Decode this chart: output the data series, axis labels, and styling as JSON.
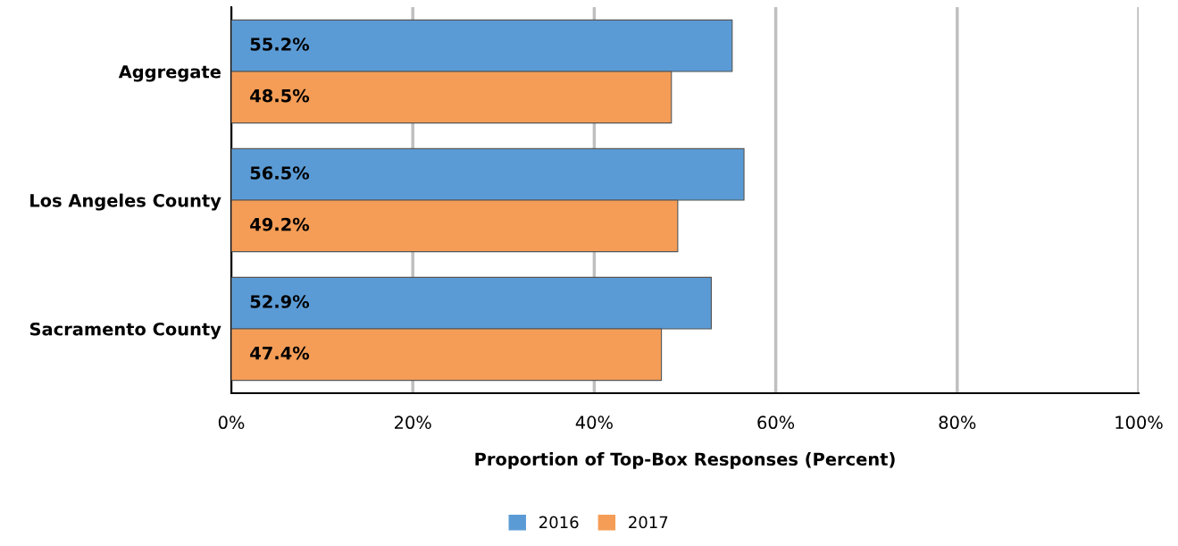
{
  "chart_data": {
    "type": "bar",
    "orientation": "horizontal",
    "xlabel": "Proportion of Top-Box Responses (Percent)",
    "categories": [
      "Aggregate",
      "Los Angeles County",
      "Sacramento County"
    ],
    "series": [
      {
        "name": "2016",
        "color": "#5b9bd5",
        "values": [
          55.2,
          56.5,
          52.9
        ],
        "value_labels": [
          "55.2%",
          "56.5%",
          "52.9%"
        ]
      },
      {
        "name": "2017",
        "color": "#f59d56",
        "values": [
          48.5,
          49.2,
          47.4
        ],
        "value_labels": [
          "48.5%",
          "49.2%",
          "47.4%"
        ]
      }
    ],
    "xlim": [
      0,
      100
    ],
    "xticks": [
      {
        "value": 0,
        "label": "0%"
      },
      {
        "value": 20,
        "label": "20%"
      },
      {
        "value": 40,
        "label": "40%"
      },
      {
        "value": 60,
        "label": "60%"
      },
      {
        "value": 80,
        "label": "80%"
      },
      {
        "value": 100,
        "label": "100%"
      }
    ],
    "grid": "x",
    "legend": "bottom"
  }
}
